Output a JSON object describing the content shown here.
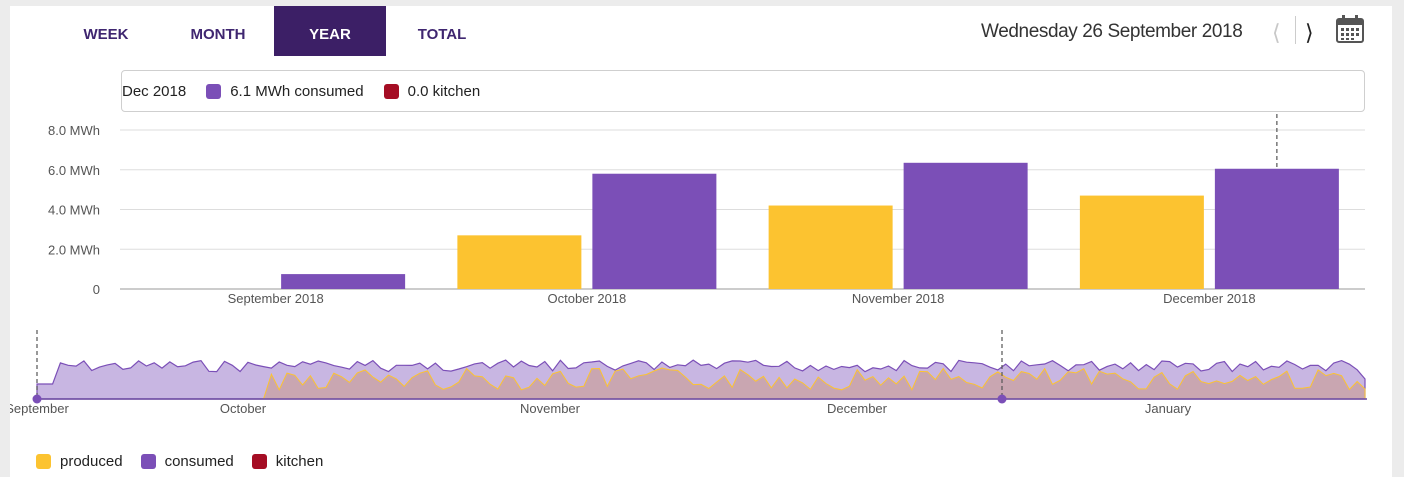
{
  "tabs": [
    {
      "label": "WEEK",
      "active": false
    },
    {
      "label": "MONTH",
      "active": false
    },
    {
      "label": "YEAR",
      "active": true
    },
    {
      "label": "TOTAL",
      "active": false
    }
  ],
  "header": {
    "date": "Wednesday 26 September 2018",
    "prev_icon": "chevron-left-icon",
    "next_icon": "chevron-right-icon",
    "calendar_icon": "calendar-icon"
  },
  "tooltip": {
    "period": "Dec 2018",
    "consumed": "6.1 MWh consumed",
    "kitchen": "0.0 kitchen"
  },
  "colors": {
    "produced": "#fcc330",
    "consumed": "#7b4fb7",
    "kitchen": "#a50d24",
    "active_tab": "#3c1f66"
  },
  "chart_data": {
    "type": "bar",
    "categories": [
      "September 2018",
      "October 2018",
      "November 2018",
      "December 2018"
    ],
    "series": [
      {
        "name": "produced",
        "values": [
          0,
          2.7,
          4.2,
          4.7
        ]
      },
      {
        "name": "consumed",
        "values": [
          0.75,
          5.8,
          6.35,
          6.05
        ]
      },
      {
        "name": "kitchen",
        "values": [
          0,
          0,
          0,
          0
        ]
      }
    ],
    "yticks": [
      "8.0 MWh",
      "6.0 MWh",
      "4.0 MWh",
      "2.0 MWh",
      "0"
    ],
    "ylim": [
      0,
      8
    ],
    "grid": true,
    "legend": "bottom-left",
    "highlighted_category": "December 2018"
  },
  "navigator": {
    "labels": [
      "September",
      "October",
      "November",
      "December",
      "January"
    ]
  },
  "legend": [
    {
      "label": "produced"
    },
    {
      "label": "consumed"
    },
    {
      "label": "kitchen"
    }
  ]
}
